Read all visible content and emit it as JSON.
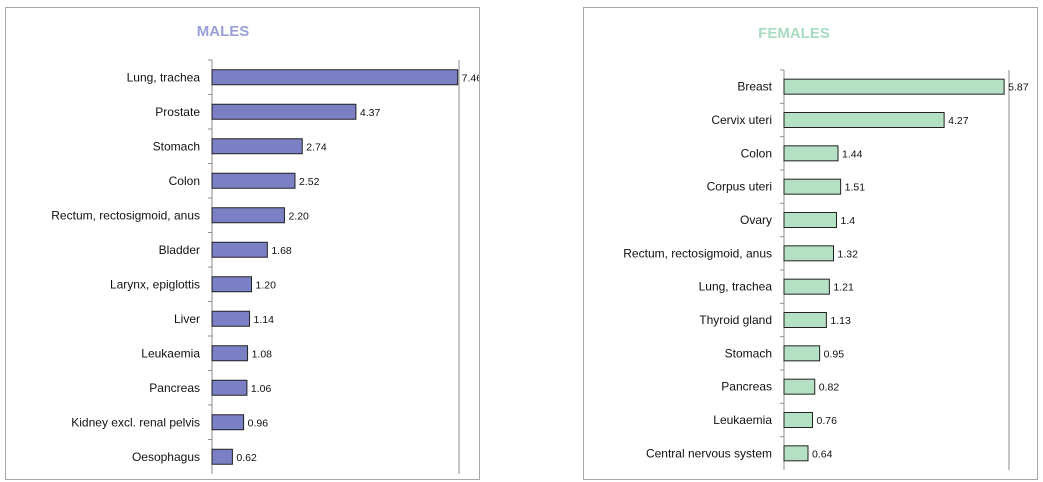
{
  "chart_data": [
    {
      "type": "bar",
      "orientation": "horizontal",
      "title": "MALES",
      "color": "#7b7fc4",
      "title_color": "#9aa0d8",
      "categories": [
        "Lung, trachea",
        "Prostate",
        "Stomach",
        "Colon",
        "Rectum, rectosigmoid, anus",
        "Bladder",
        "Larynx, epiglottis",
        "Liver",
        "Leukaemia",
        "Pancreas",
        "Kidney excl. renal pelvis",
        "Oesophagus"
      ],
      "values": [
        7.46,
        4.37,
        2.74,
        2.52,
        2.2,
        1.68,
        1.2,
        1.14,
        1.08,
        1.06,
        0.96,
        0.62
      ],
      "value_labels": [
        "7.46",
        "4.37",
        "2.74",
        "2.52",
        "2.20",
        "1.68",
        "1.20",
        "1.14",
        "1.08",
        "1.06",
        "0.96",
        "0.62"
      ],
      "xlim": [
        0,
        7.5
      ],
      "grid": false
    },
    {
      "type": "bar",
      "orientation": "horizontal",
      "title": "FEMALES",
      "color": "#b4e0c4",
      "title_color": "#a8dcc0",
      "categories": [
        "Breast",
        "Cervix uteri",
        "Colon",
        "Corpus uteri",
        "Ovary",
        "Rectum, rectosigmoid, anus",
        "Lung, trachea",
        "Thyroid gland",
        "Stomach",
        "Pancreas",
        "Leukaemia",
        "Central nervous system"
      ],
      "values": [
        5.87,
        4.27,
        1.44,
        1.51,
        1.4,
        1.32,
        1.21,
        1.13,
        0.95,
        0.82,
        0.76,
        0.64
      ],
      "value_labels": [
        "5.87",
        "4.27",
        "1.44",
        "1.51",
        "1.4",
        "1.32",
        "1.21",
        "1.13",
        "0.95",
        "0.82",
        "0.76",
        "0.64"
      ],
      "xlim": [
        0,
        6.0
      ],
      "grid": false
    }
  ]
}
